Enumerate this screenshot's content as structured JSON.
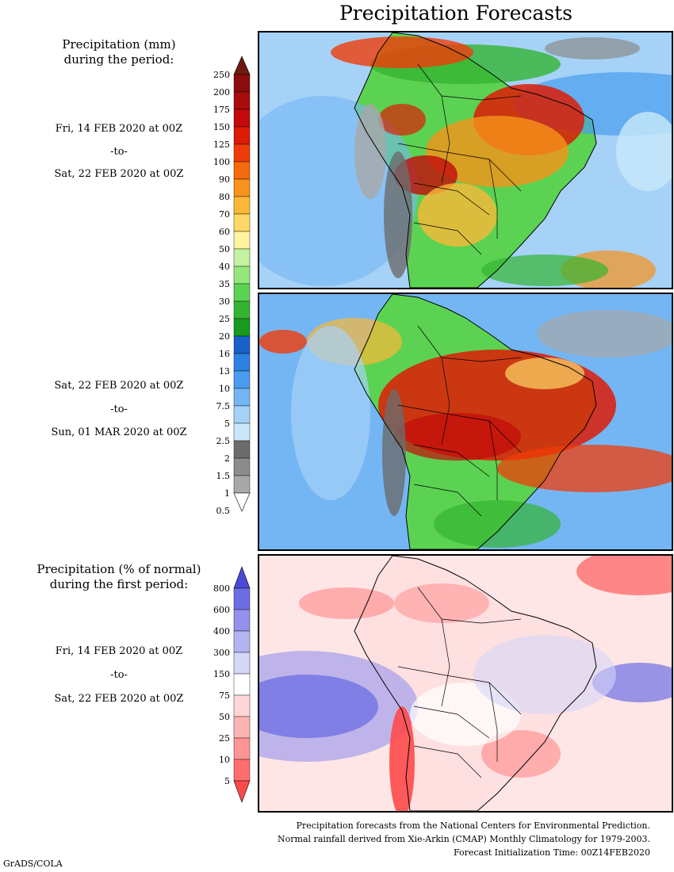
{
  "title": "Precipitation Forecasts",
  "period1": {
    "label_line1": "Precipitation (mm)",
    "label_line2": "during the period:",
    "from": "Fri, 14 FEB 2020 at 00Z",
    "to_word": "-to-",
    "until": "Sat, 22 FEB 2020 at 00Z"
  },
  "period2": {
    "from": "Sat, 22 FEB 2020 at 00Z",
    "to_word": "-to-",
    "until": "Sun, 01 MAR 2020 at 00Z"
  },
  "anomaly": {
    "label_line1": "Precipitation (% of normal)",
    "label_line2": "during the first period:",
    "from": "Fri, 14 FEB 2020 at 00Z",
    "to_word": "-to-",
    "until": "Sat, 22 FEB 2020 at 00Z"
  },
  "footer": {
    "line1": "Precipitation forecasts from the National Centers for Environmental Prediction.",
    "line2": "Normal rainfall derived from Xie-Arkin (CMAP) Monthly Climatology for 1979-2003.",
    "line3": "Forecast Initialization Time: 00Z14FEB2020"
  },
  "credit": "GrADS/COLA",
  "chart_data": [
    {
      "type": "heatmap",
      "title": "Precipitation (mm) Fri, 14 FEB 2020 at 00Z -to- Sat, 22 FEB 2020 at 00Z",
      "region": "South America",
      "colorbar_levels": [
        "250",
        "200",
        "175",
        "150",
        "125",
        "100",
        "90",
        "80",
        "70",
        "60",
        "50",
        "40",
        "35",
        "30",
        "25",
        "20",
        "16",
        "13",
        "10",
        "7.5",
        "5",
        "2.5",
        "2",
        "1.5",
        "1",
        "0.5"
      ],
      "colorbar_colors": [
        "#6e1a10",
        "#8c0d0d",
        "#a80c0c",
        "#c40a0a",
        "#dd1c06",
        "#f03c0a",
        "#f56a0a",
        "#f8921a",
        "#fbb838",
        "#fdd868",
        "#fff3a0",
        "#c4f2a0",
        "#96e67e",
        "#5cd252",
        "#34b432",
        "#189a1e",
        "#1860c8",
        "#2c82e0",
        "#4a9cee",
        "#74b6f4",
        "#a6d2f8",
        "#c8e8fa",
        "#6c6c6c",
        "#8c8c8c",
        "#a8a8a8",
        "#c4c4c4"
      ]
    },
    {
      "type": "heatmap",
      "title": "Precipitation (mm) Sat, 22 FEB 2020 at 00Z -to- Sun, 01 MAR 2020 at 00Z",
      "region": "South America"
    },
    {
      "type": "heatmap",
      "title": "Precipitation (% of normal) Fri, 14 FEB 2020 at 00Z -to- Sat, 22 FEB 2020 at 00Z",
      "region": "South America",
      "colorbar_levels": [
        "800",
        "600",
        "400",
        "300",
        "150",
        "75",
        "50",
        "25",
        "10",
        "5"
      ],
      "colorbar_colors": [
        "#4a4ad8",
        "#6e6ee4",
        "#9292ec",
        "#b4b4f2",
        "#d6d6f8",
        "#ffffff",
        "#ffd6d6",
        "#ffb4b4",
        "#ff9494",
        "#ff6e6e",
        "#ff4a4a"
      ]
    }
  ]
}
